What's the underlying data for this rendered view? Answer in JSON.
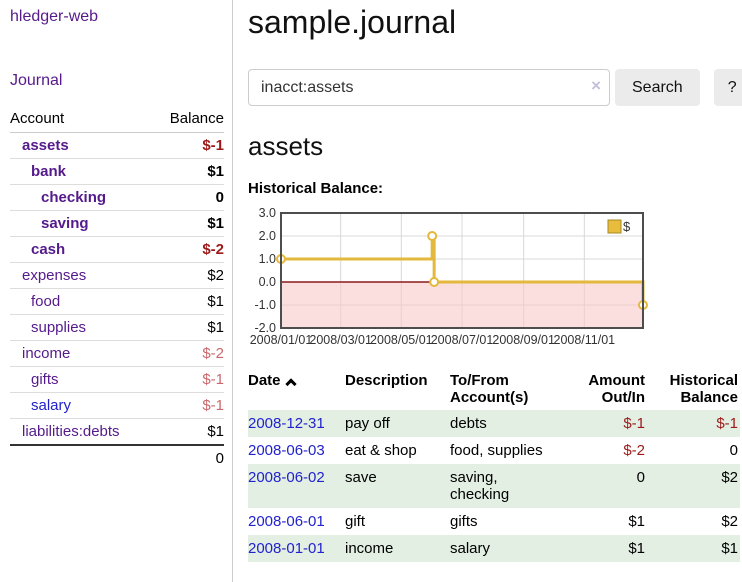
{
  "app": {
    "brand": "hledger-web",
    "nav_journal": "Journal"
  },
  "colors": {
    "accent_purple": "#551a8b",
    "link_blue": "#2222cc",
    "negative_dark": "#9c1a1a",
    "negative_light": "#c9696e",
    "row_green": "#e3efe3",
    "chart_line": "#e3b83c",
    "chart_negative_fill": "#f8caca",
    "chart_zero_line": "#8b1a1a"
  },
  "sidebar": {
    "columns": {
      "account": "Account",
      "balance": "Balance"
    },
    "accounts": [
      {
        "name": "assets",
        "balance": "$-1"
      },
      {
        "name": "bank",
        "balance": "$1"
      },
      {
        "name": "checking",
        "balance": "0"
      },
      {
        "name": "saving",
        "balance": "$1"
      },
      {
        "name": "cash",
        "balance": "$-2"
      },
      {
        "name": "expenses",
        "balance": "$2"
      },
      {
        "name": "food",
        "balance": "$1"
      },
      {
        "name": "supplies",
        "balance": "$1"
      },
      {
        "name": "income",
        "balance": "$-2"
      },
      {
        "name": "gifts",
        "balance": "$-1"
      },
      {
        "name": "salary",
        "balance": "$-1"
      },
      {
        "name": "liabilities:debts",
        "balance": "$1"
      }
    ],
    "total": "0"
  },
  "header": {
    "title": "sample.journal"
  },
  "search": {
    "query": "inacct:assets",
    "clear_label": "×",
    "search_button": "Search",
    "help_button": "?"
  },
  "account_page": {
    "title": "assets",
    "chart_label": "Historical Balance:"
  },
  "chart_data": {
    "type": "line",
    "title": "Historical Balance:",
    "legend": "$",
    "step": true,
    "x_max_days": 364,
    "ylim": [
      -2,
      3
    ],
    "yticks": [
      {
        "v": 3,
        "label": "3.0"
      },
      {
        "v": 2,
        "label": "2.0"
      },
      {
        "v": 1,
        "label": "1.0"
      },
      {
        "v": 0,
        "label": "0.0"
      },
      {
        "v": -1,
        "label": "-1.0"
      },
      {
        "v": -2,
        "label": "-2.0"
      }
    ],
    "xticks": [
      {
        "d": 0,
        "label": "2008/01/01"
      },
      {
        "d": 60,
        "label": "2008/03/01"
      },
      {
        "d": 121,
        "label": "2008/05/01"
      },
      {
        "d": 182,
        "label": "2008/07/01"
      },
      {
        "d": 244,
        "label": "2008/09/01"
      },
      {
        "d": 305,
        "label": "2008/11/01"
      }
    ],
    "series": [
      {
        "name": "$",
        "points": [
          {
            "d": 0,
            "date": "2008-01-01",
            "y": 1
          },
          {
            "d": 152,
            "date": "2008-06-01",
            "y": 2
          },
          {
            "d": 154,
            "date": "2008-06-03",
            "y": 0
          },
          {
            "d": 364,
            "date": "2008-12-31",
            "y": -1
          }
        ]
      }
    ],
    "negative_region_below": 0
  },
  "register": {
    "columns": {
      "date": "Date",
      "description": "Description",
      "tofrom": "To/From Account(s)",
      "amount": "Amount Out/In",
      "balance": "Historical Balance"
    },
    "rows": [
      {
        "date": "2008-12-31",
        "description": "pay off",
        "accounts": "debts",
        "amount": "$-1",
        "balance": "$-1"
      },
      {
        "date": "2008-06-03",
        "description": "eat & shop",
        "accounts": "food, supplies",
        "amount": "$-2",
        "balance": "0"
      },
      {
        "date": "2008-06-02",
        "description": "save",
        "accounts": "saving, checking",
        "amount": "0",
        "balance": "$2"
      },
      {
        "date": "2008-06-01",
        "description": "gift",
        "accounts": "gifts",
        "amount": "$1",
        "balance": "$2"
      },
      {
        "date": "2008-01-01",
        "description": "income",
        "accounts": "salary",
        "amount": "$1",
        "balance": "$1"
      }
    ]
  }
}
